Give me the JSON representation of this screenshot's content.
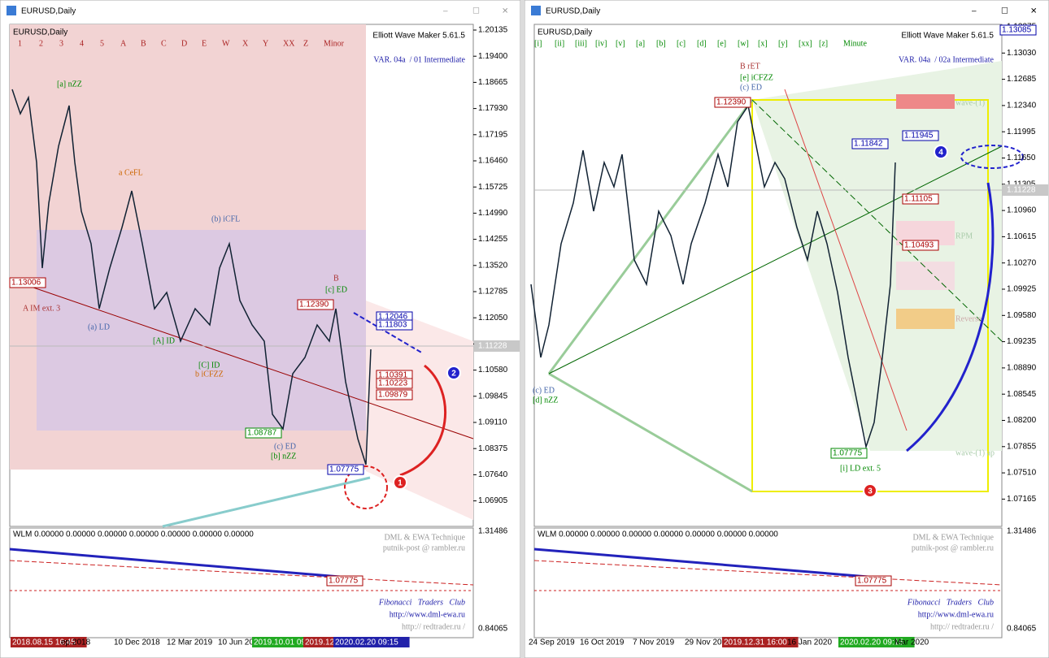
{
  "windows": [
    {
      "title": "EURUSD,Daily",
      "chart_label": "EURUSD,Daily",
      "wave_labels": [
        "1",
        "2",
        "3",
        "4",
        "5",
        "A",
        "B",
        "C",
        "D",
        "E",
        "W",
        "X",
        "Y",
        "XX",
        "Z",
        "Minor"
      ],
      "indicator": "Elliott Wave Maker 5.61.5",
      "variant": "VAR. 04a  / 01 Intermediate",
      "price_scale": [
        "1.20135",
        "1.19400",
        "1.18665",
        "1.17930",
        "1.17195",
        "1.16460",
        "1.15725",
        "1.14990",
        "1.14255",
        "1.13520",
        "1.12785",
        "1.12050",
        "1.11315",
        "1.10580",
        "1.09845",
        "1.09110",
        "1.08375",
        "1.07640",
        "1.06905"
      ],
      "current_price": "1.11228",
      "price_tags": [
        "1.13006",
        "1.12390",
        "1.12046",
        "1.11803",
        "1.10391",
        "1.10223",
        "1.09879",
        "1.08787",
        "1.07775"
      ],
      "annotations": [
        "A IM ext. 3",
        "[a] nZZ",
        "a CeFL",
        "(b) iCFL",
        "[c] ED",
        "[b] nZZ",
        "(c) ED",
        "[A] ID",
        "[C] ID",
        "b iCFZZ",
        "(a) LD",
        "B"
      ],
      "sub_label": "WLM 0.00000 0.00000 0.00000 0.00000 0.00000 0.00000 0.00000",
      "sub_scale": [
        "1.31486",
        "0.84065"
      ],
      "sub_tag": "1.07775",
      "watermark": [
        "DML & EWA Technique",
        "putnik-post @ rambler.ru"
      ],
      "credits": [
        "Fibonacci   Traders   Club",
        "http://www.dml-ewa.ru",
        "http:// redtrader.ru /"
      ],
      "time_axis": [
        "2018.08.15 16:45",
        "ep 2018",
        "10 Dec 2018",
        "12 Mar 2019",
        "10 Jun 20",
        "2019.10.01 09:",
        "2019.12",
        "2020.02.20 09:15"
      ],
      "markers": [
        "1",
        "2"
      ]
    },
    {
      "title": "EURUSD,Daily",
      "chart_label": "EURUSD,Daily",
      "wave_labels": [
        "[i]",
        "[ii]",
        "[iii]",
        "[iv]",
        "[v]",
        "[a]",
        "[b]",
        "[c]",
        "[d]",
        "[e]",
        "[w]",
        "[x]",
        "[y]",
        "[xx]",
        "[z]",
        "Minute"
      ],
      "indicator": "Elliott Wave Maker 5.61.5",
      "variant": "VAR. 04a  / 02a Intermediate",
      "price_scale": [
        "1.13375",
        "1.13030",
        "1.12685",
        "1.12340",
        "1.11995",
        "1.11650",
        "1.11305",
        "1.10960",
        "1.10615",
        "1.10270",
        "1.09925",
        "1.09580",
        "1.09235",
        "1.08890",
        "1.08545",
        "1.08200",
        "1.07855",
        "1.07510",
        "1.07165"
      ],
      "current_price": "1.11228",
      "price_tags": [
        "1.13085",
        "1.12390",
        "1.11945",
        "1.11842",
        "1.11105",
        "1.10493",
        "1.07775"
      ],
      "annotations": [
        "B rET",
        "[e] iCFZZ",
        "(c) ED",
        "[i] LD ext. 5",
        "(c) ED",
        "[d] nZZ",
        "wave-(1)",
        "RPM",
        "Reverse",
        "wave-(1) ap"
      ],
      "sub_label": "WLM 0.00000 0.00000 0.00000 0.00000 0.00000 0.00000 0.00000",
      "sub_scale": [
        "1.31486",
        "0.84065"
      ],
      "sub_tag": "1.07775",
      "watermark": [
        "DML & EWA Technique",
        "putnik-post @ rambler.ru"
      ],
      "credits": [
        "Fibonacci   Traders   Club",
        "http://www.dml-ewa.ru",
        "http:// redtrader.ru /"
      ],
      "time_axis": [
        "24 Sep 2019",
        "16 Oct 2019",
        "7 Nov 2019",
        "29 Nov 20",
        "2019.12.31 16:00",
        "16 Jan 2020",
        "2020.02.20 09:15",
        "Mar 2020"
      ],
      "markers": [
        "3",
        "4"
      ]
    }
  ]
}
